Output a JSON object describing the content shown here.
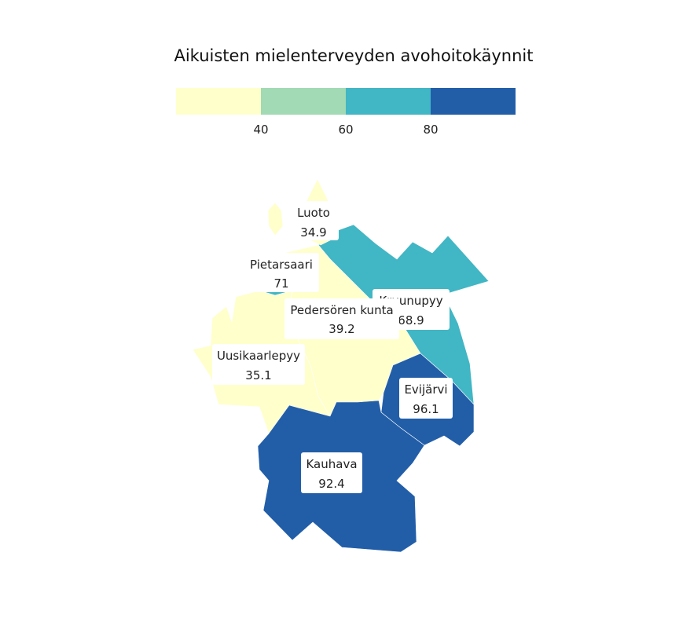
{
  "title": "Aikuisten mielenterveyden avohoitokäynnit",
  "legend": {
    "colors": [
      "#ffffcc",
      "#a1dab4",
      "#41b6c4",
      "#225ea8"
    ],
    "ticks": [
      "40",
      "60",
      "80"
    ]
  },
  "regions": [
    {
      "name": "Luoto",
      "value": "34.9",
      "color": "#ffffcc"
    },
    {
      "name": "Pietarsaari",
      "value": "71",
      "color": "#41b6c4"
    },
    {
      "name": "Pedersören kunta",
      "value": "39.2",
      "color": "#ffffcc"
    },
    {
      "name": "Kruunupyy",
      "value": "68.9",
      "color": "#41b6c4"
    },
    {
      "name": "Uusikaarlepyy",
      "value": "35.1",
      "color": "#ffffcc"
    },
    {
      "name": "Evijärvi",
      "value": "96.1",
      "color": "#225ea8"
    },
    {
      "name": "Kauhava",
      "value": "92.4",
      "color": "#225ea8"
    }
  ]
}
